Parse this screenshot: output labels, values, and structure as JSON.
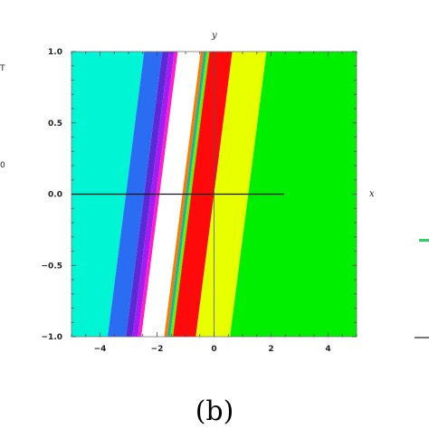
{
  "caption": "(b)",
  "edge_fragments": {
    "left_top": "T",
    "left_mid": "0"
  },
  "colors": {
    "cyan": "#00f5d4",
    "blue": "#2a6cf2",
    "indigo": "#5b2ad6",
    "violet": "#a41df0",
    "magenta": "#ff1ecd",
    "white": "#ffffff",
    "orange": "#ff7a00",
    "teal": "#17b3a0",
    "lime": "#6af000",
    "red": "#ff0a0a",
    "yellow": "#e8ff00",
    "green": "#00ee00",
    "right_edge_mark": "#2ecf64"
  },
  "chart_data": {
    "type": "region",
    "title": "",
    "xlabel": "x",
    "ylabel": "y",
    "xlim": [
      -5,
      5
    ],
    "ylim": [
      -1,
      1
    ],
    "x_ticks": [
      -4,
      -2,
      0,
      2,
      4
    ],
    "x_tick_labels": [
      "−4",
      "−2",
      "0",
      "2",
      "4"
    ],
    "y_ticks": [
      -1,
      -0.5,
      0,
      0.5,
      1
    ],
    "y_tick_labels": [
      "−1.0",
      "−0.5",
      "0.0",
      "0.5",
      "1.0"
    ],
    "grid": false,
    "legend": "none",
    "band_slope": 0.64,
    "band_description": "parallel colored bands bounded by lines x = c + 0.64 y; boundaries given as c at y = 0",
    "bands": [
      {
        "color": "#00f5d4",
        "from": -5.0,
        "to": -3.09
      },
      {
        "color": "#2a6cf2",
        "from": -3.09,
        "to": -2.45
      },
      {
        "color": "#5b2ad6",
        "from": -2.45,
        "to": -2.22
      },
      {
        "color": "#a41df0",
        "from": -2.22,
        "to": -2.03
      },
      {
        "color": "#ff1ecd",
        "from": -2.03,
        "to": -1.91
      },
      {
        "color": "#ffffff",
        "from": -1.91,
        "to": -1.11
      },
      {
        "color": "#ff7a00",
        "from": -1.11,
        "to": -1.0
      },
      {
        "color": "#17b3a0",
        "from": -1.0,
        "to": -0.9
      },
      {
        "color": "#6af000",
        "from": -0.9,
        "to": -0.8
      },
      {
        "color": "#ff0a0a",
        "from": -0.8,
        "to": 0.0
      },
      {
        "color": "#e8ff00",
        "from": 0.0,
        "to": 1.2
      },
      {
        "color": "#00ee00",
        "from": 1.2,
        "to": 5.0
      }
    ]
  }
}
